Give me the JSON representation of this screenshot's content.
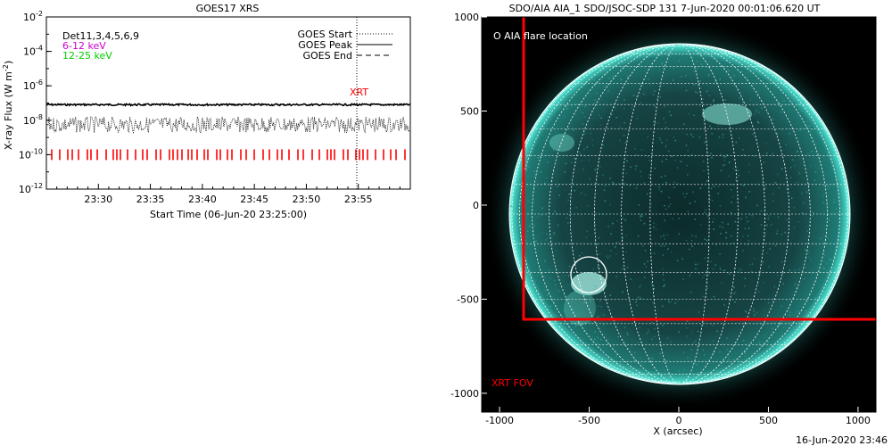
{
  "left_panel": {
    "title": "GOES17 XRS",
    "ylabel": "X-ray Flux (W m",
    "ylabel_sup": "-2",
    "ylabel_close": ")",
    "xlabel": "Start Time (06-Jun-20 23:25:00)",
    "bands_label": "Det11,3,4,5,6,9",
    "band_1": "6-12 keV",
    "band_2": "12-25 keV",
    "legend": [
      {
        "label": "GOES Start",
        "style": "dotted"
      },
      {
        "label": "GOES Peak",
        "style": "solid"
      },
      {
        "label": "GOES End",
        "style": "dashed"
      }
    ],
    "xrt_label": "XRT",
    "colors": {
      "band_1": "#cc00cc",
      "band_2": "#00cc00",
      "xrt": "#ff0000"
    }
  },
  "right_panel": {
    "title": "SDO/AIA AIA_1 SDO/JSOC-SDP 131  7-Jun-2020 00:01:06.620 UT",
    "xlabel": "X (arcsec)",
    "marker_label": "O AIA flare location",
    "fov_label": "XRT FOV",
    "colors": {
      "disk": "#2fbfb0",
      "fov": "#ff0000",
      "grid": "#ffffff"
    }
  },
  "footer_timestamp": "16-Jun-2020 23:46",
  "chart_data": [
    {
      "type": "line",
      "title": "GOES17 XRS",
      "xlabel": "Start Time (06-Jun-20 23:25:00)",
      "ylabel": "X-ray Flux (W m-2)",
      "x_ticks": [
        "23:30",
        "23:35",
        "23:40",
        "23:45",
        "23:50",
        "23:55"
      ],
      "y_ticks": [
        "10^-2",
        "10^-4",
        "10^-6",
        "10^-8",
        "10^-10",
        "10^-12"
      ],
      "y_scale": "log",
      "ylim": [
        1e-12,
        0.01
      ],
      "xlim_minutes": [
        0,
        35
      ],
      "series": [
        {
          "name": "6-12 keV",
          "level": 8e-08
        },
        {
          "name": "12-25 keV",
          "level": 1e-08
        }
      ],
      "xrt_marker_minute": 31,
      "xrt_tick_level": 1e-10
    },
    {
      "type": "image",
      "title": "SDO/AIA AIA_1 SDO/JSOC-SDP 131  7-Jun-2020 00:01:06.620 UT",
      "xlabel": "X (arcsec)",
      "x_ticks": [
        "-1000",
        "-500",
        "0",
        "500",
        "1000"
      ],
      "y_ticks": [
        "1000",
        "500",
        "0",
        "-500",
        "-1000"
      ],
      "xlim": [
        -1100,
        1100
      ],
      "ylim": [
        -1100,
        1000
      ],
      "solar_radius_arcsec": 950,
      "flare_location": {
        "x": -500,
        "y": -340
      },
      "xrt_fov": {
        "x_min": -870,
        "x_max": 1100,
        "y_min": -600,
        "y_max": 1000
      }
    }
  ]
}
